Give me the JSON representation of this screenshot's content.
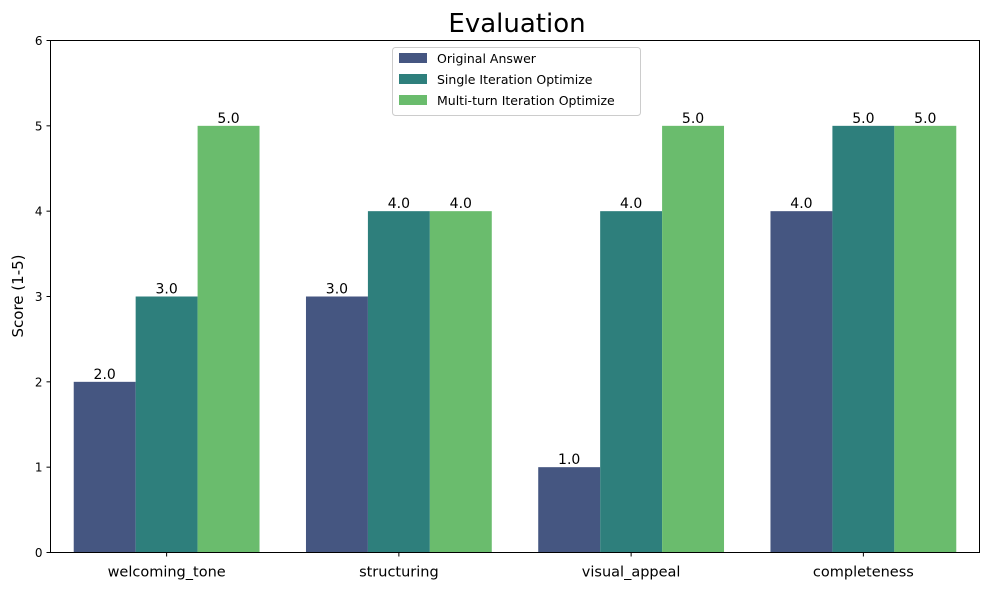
{
  "chart_data": {
    "type": "bar",
    "title": "Evaluation",
    "xlabel": "",
    "ylabel": "Score (1-5)",
    "ylim": [
      0,
      6
    ],
    "yticks": [
      0,
      1,
      2,
      3,
      4,
      5,
      6
    ],
    "categories": [
      "welcoming_tone",
      "structuring",
      "visual_appeal",
      "completeness"
    ],
    "series": [
      {
        "name": "Original Answer",
        "color": "#455681",
        "values": [
          2.0,
          3.0,
          1.0,
          4.0
        ],
        "labels": [
          "2.0",
          "3.0",
          "1.0",
          "4.0"
        ]
      },
      {
        "name": "Single Iteration Optimize",
        "color": "#2e7f7c",
        "values": [
          3.0,
          4.0,
          4.0,
          5.0
        ],
        "labels": [
          "3.0",
          "4.0",
          "4.0",
          "5.0"
        ]
      },
      {
        "name": "Multi-turn Iteration Optimize",
        "color": "#6abc6d",
        "values": [
          5.0,
          4.0,
          5.0,
          5.0
        ],
        "labels": [
          "5.0",
          "4.0",
          "5.0",
          "5.0"
        ]
      }
    ],
    "legend_position": "top-center",
    "grid": false
  }
}
